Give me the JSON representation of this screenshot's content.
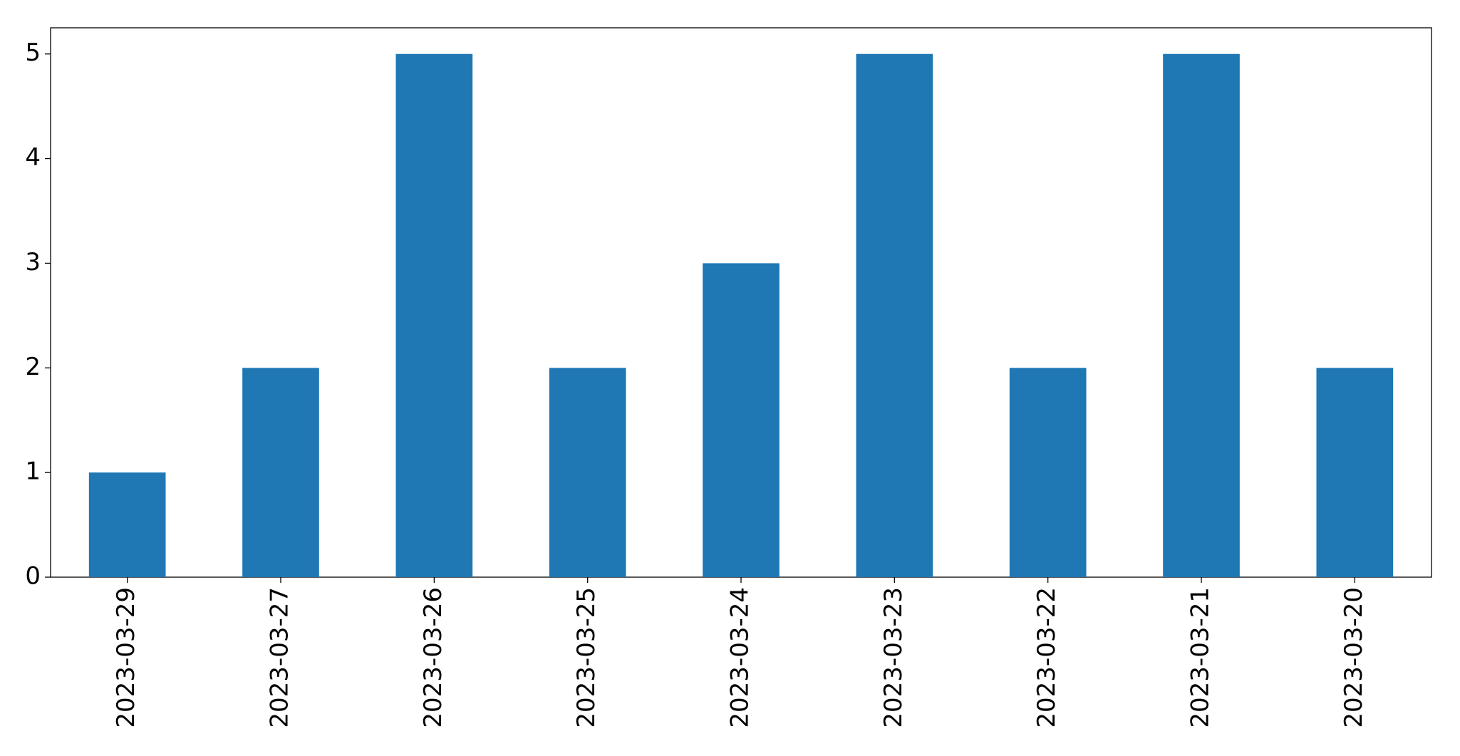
{
  "chart_data": {
    "type": "bar",
    "categories": [
      "2023-03-29",
      "2023-03-27",
      "2023-03-26",
      "2023-03-25",
      "2023-03-24",
      "2023-03-23",
      "2023-03-22",
      "2023-03-21",
      "2023-03-20"
    ],
    "values": [
      1,
      2,
      5,
      2,
      3,
      5,
      2,
      5,
      2
    ],
    "color": "#1f77b4",
    "ylim": [
      0,
      5.25
    ],
    "yticks": [
      0,
      1,
      2,
      3,
      4,
      5
    ],
    "grid": false
  }
}
